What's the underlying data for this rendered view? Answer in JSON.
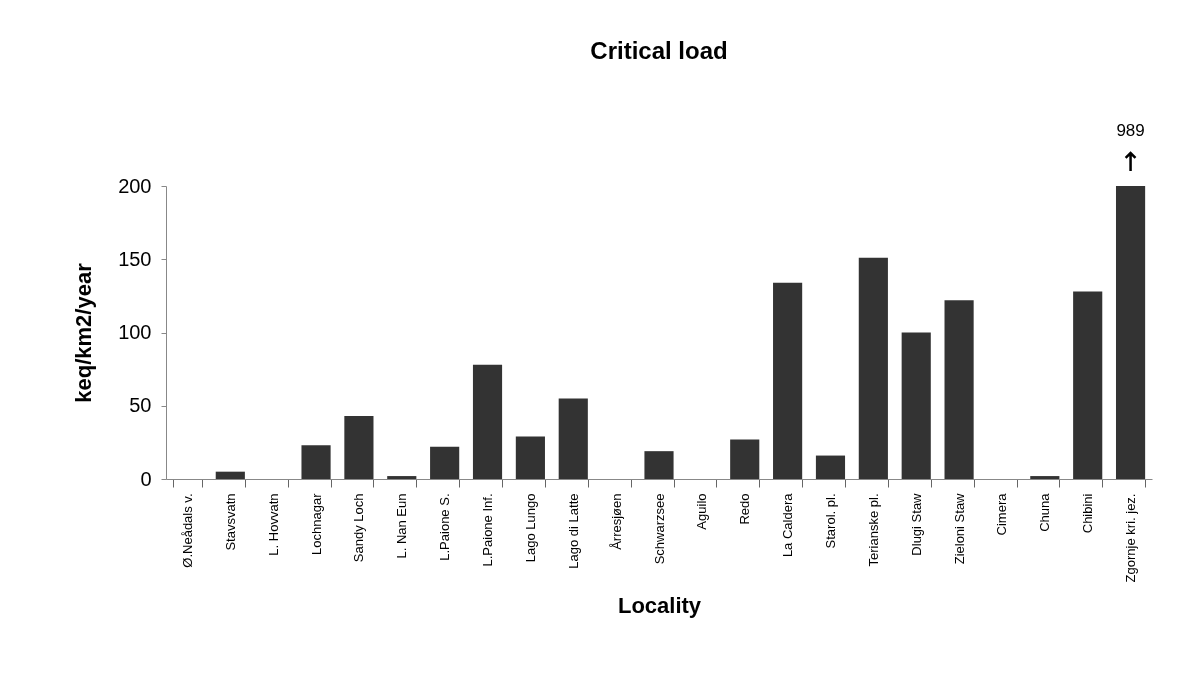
{
  "chart_data": {
    "type": "bar",
    "title": "Critical load",
    "xlabel": "Locality",
    "ylabel": "keq/km2/year",
    "categories": [
      "Ø.Neådals v.",
      "Stavsvatn",
      "L. Hovvatn",
      "Lochnagar",
      "Sandy Loch",
      "L. Nan Eun",
      "L.Paione S.",
      "L.Paione Inf.",
      "Lago Lungo",
      "Lago di Latte",
      "Årresjøen",
      "Schwarzsee",
      "Aguilo",
      "Redo",
      "La Caldera",
      "Starol. pl.",
      "Terianske pl.",
      "Dlugi Staw",
      "Zieloni Staw",
      "Cimera",
      "Chuna",
      "Chibini",
      "Zgornje kri. jez."
    ],
    "values": [
      0,
      5,
      0,
      23,
      43,
      2,
      22,
      78,
      29,
      55,
      0,
      19,
      0,
      27,
      134,
      16,
      151,
      100,
      122,
      0,
      2,
      128,
      200
    ],
    "color": "#333333",
    "ylim": [
      0,
      200
    ],
    "yticks": [
      0,
      50,
      100,
      150,
      200
    ],
    "grid": false,
    "annotations": [
      {
        "text": "989",
        "x": "Zgornje kri. jez.",
        "y": 200
      }
    ]
  }
}
